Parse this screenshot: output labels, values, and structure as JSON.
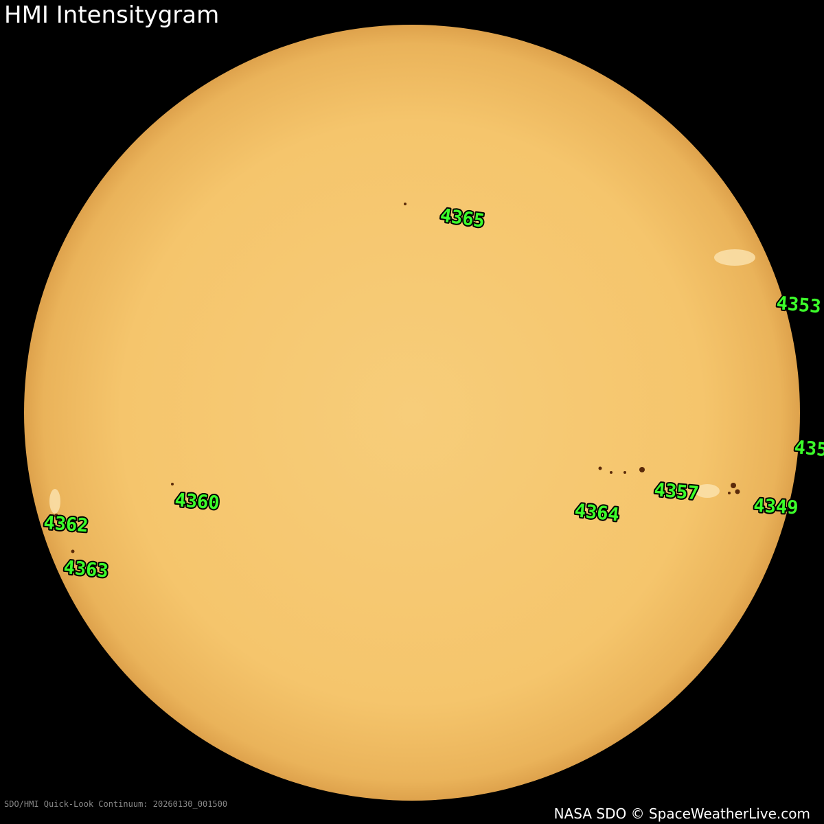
{
  "header": {
    "title": "HMI Intensitygram"
  },
  "regions": [
    {
      "label": "4365"
    },
    {
      "label": "4353"
    },
    {
      "label": "435"
    },
    {
      "label": "4357"
    },
    {
      "label": "4349"
    },
    {
      "label": "4364"
    },
    {
      "label": "4360"
    },
    {
      "label": "4362"
    },
    {
      "label": "4363"
    }
  ],
  "footer": {
    "caption": "SDO/HMI Quick-Look Continuum: 20260130_001500",
    "credit": "NASA SDO © SpaceWeatherLive.com"
  }
}
